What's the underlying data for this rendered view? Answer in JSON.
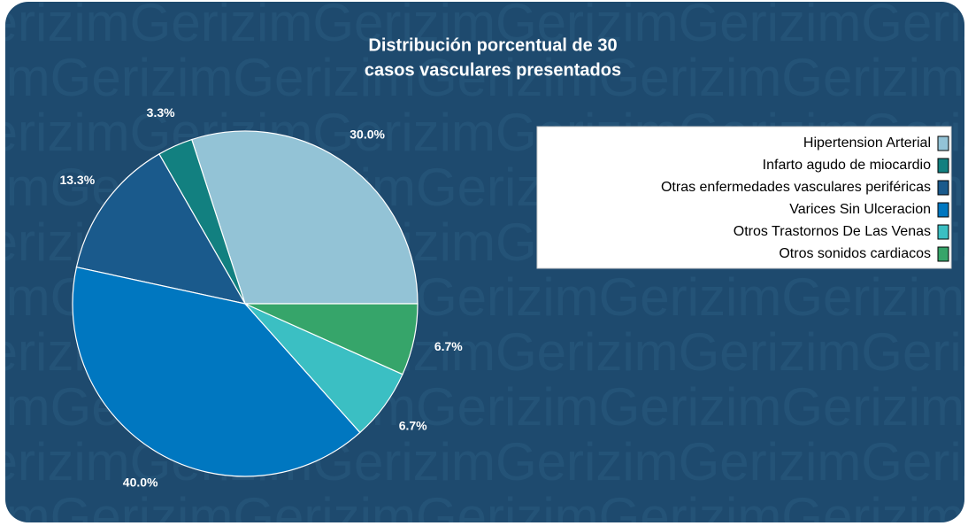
{
  "chart_data": {
    "type": "pie",
    "title": "Distribución porcentual de 30",
    "subtitle": "casos vasculares presentados",
    "watermark": "Gerizim",
    "categories": [
      "Hipertension Arterial",
      "Infarto agudo de miocardio",
      "Otras enfermedades vasculares periféricas",
      "Varices Sin Ulceracion",
      "Otros Trastornos De Las Venas",
      "Otros sonidos cardiacos"
    ],
    "values": [
      30,
      3.3,
      13.3,
      40,
      6.7,
      6.7
    ],
    "value_labels": [
      "30.0%",
      "3.3%",
      "13.3%",
      "40.0%",
      "6.7%",
      "6.7%"
    ],
    "colors": [
      "#93c3d6",
      "#128080",
      "#1a5a8c",
      "#0077c0",
      "#3bbfc3",
      "#36a56a"
    ],
    "legend": "top-right"
  }
}
